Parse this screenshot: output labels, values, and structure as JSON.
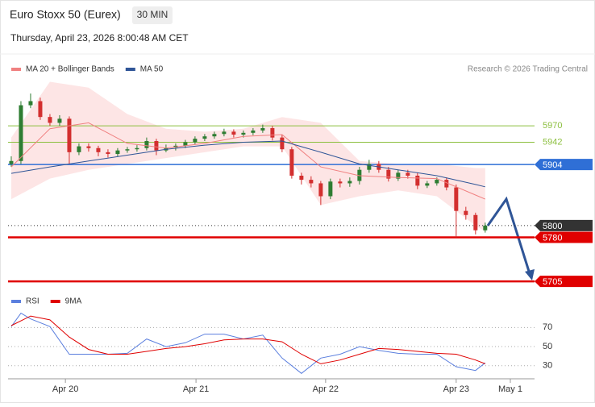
{
  "header": {
    "title": "Euro Stoxx 50 (Eurex)",
    "timeframe": "30 MIN",
    "datetime": "Thursday, April 23, 2026 8:00:48 AM CET",
    "source": "Research © 2026 Trading Central"
  },
  "chart_data": [
    {
      "type": "candlestick",
      "xlim": [
        -0.33,
        54.1
      ],
      "ylim": [
        5690,
        6047
      ],
      "up_color": "#2e7d32",
      "down_color": "#d32f2f",
      "candles": {
        "open": [
          5905,
          5910,
          6005,
          6012,
          5985,
          5975,
          5982,
          5925,
          5935,
          5932,
          5925,
          5922,
          5928,
          5930,
          5932,
          5944,
          5928,
          5933,
          5936,
          5942,
          5948,
          5952,
          5956,
          5960,
          5955,
          5958,
          5962,
          5966,
          5950,
          5930,
          5885,
          5878,
          5872,
          5850,
          5875,
          5872,
          5876,
          5895,
          5905,
          5895,
          5880,
          5890,
          5885,
          5868,
          5872,
          5878,
          5865,
          5825,
          5818,
          5792
        ],
        "high": [
          5918,
          6012,
          6025,
          6018,
          5990,
          5988,
          5986,
          5940,
          5940,
          5936,
          5930,
          5932,
          5934,
          5937,
          5950,
          5948,
          5938,
          5940,
          5946,
          5952,
          5956,
          5960,
          5965,
          5964,
          5962,
          5966,
          5972,
          5970,
          5955,
          5934,
          5890,
          5884,
          5876,
          5880,
          5880,
          5882,
          5900,
          5912,
          5910,
          5900,
          5895,
          5895,
          5890,
          5876,
          5882,
          5882,
          5870,
          5832,
          5822,
          5805
        ],
        "low": [
          5900,
          5905,
          6000,
          5980,
          5970,
          5970,
          5905,
          5920,
          5926,
          5918,
          5916,
          5918,
          5924,
          5926,
          5928,
          5920,
          5925,
          5928,
          5932,
          5938,
          5944,
          5948,
          5952,
          5950,
          5950,
          5954,
          5958,
          5945,
          5925,
          5880,
          5870,
          5865,
          5835,
          5845,
          5865,
          5866,
          5870,
          5890,
          5890,
          5875,
          5876,
          5880,
          5862,
          5864,
          5868,
          5860,
          5780,
          5810,
          5785,
          5788
        ],
        "close": [
          5910,
          6005,
          6012,
          5985,
          5975,
          5982,
          5925,
          5935,
          5932,
          5925,
          5922,
          5928,
          5930,
          5932,
          5944,
          5928,
          5933,
          5936,
          5942,
          5948,
          5952,
          5956,
          5960,
          5955,
          5958,
          5962,
          5966,
          5950,
          5930,
          5885,
          5878,
          5872,
          5850,
          5875,
          5872,
          5876,
          5895,
          5905,
          5895,
          5880,
          5890,
          5885,
          5868,
          5872,
          5878,
          5865,
          5825,
          5818,
          5792,
          5800
        ]
      },
      "series": [
        {
          "name": "MA 20 + Bollinger Bands",
          "color": "#f08080",
          "band_color": "#fde0e0",
          "x": [
            0,
            4,
            8,
            12,
            16,
            20,
            24,
            28,
            32,
            36,
            40,
            44,
            48,
            49
          ],
          "values": [
            5900,
            5965,
            5975,
            5940,
            5932,
            5940,
            5952,
            5955,
            5900,
            5885,
            5882,
            5880,
            5852,
            5845
          ],
          "upper": [
            5950,
            6045,
            6035,
            5990,
            5965,
            5960,
            5965,
            5985,
            5975,
            5910,
            5905,
            5905,
            5898,
            5898
          ],
          "lower": [
            5845,
            5880,
            5895,
            5905,
            5915,
            5925,
            5935,
            5935,
            5835,
            5850,
            5860,
            5850,
            5800,
            5790
          ]
        },
        {
          "name": "MA 50",
          "color": "#2f5597",
          "x": [
            0,
            4,
            8,
            12,
            16,
            20,
            24,
            28,
            32,
            36,
            40,
            44,
            48,
            49
          ],
          "values": [
            5889,
            5900,
            5910,
            5920,
            5930,
            5937,
            5942,
            5944,
            5925,
            5905,
            5895,
            5885,
            5870,
            5866
          ]
        }
      ],
      "levels": [
        {
          "value": 5970,
          "color": "#8cbf3f",
          "width": 1,
          "style": "solid",
          "label_style": "plain"
        },
        {
          "value": 5942,
          "color": "#8cbf3f",
          "width": 1,
          "style": "solid",
          "label_style": "plain"
        },
        {
          "value": 5904,
          "color": "#2f6fd6",
          "width": 1.5,
          "style": "solid",
          "label_style": "box"
        },
        {
          "value": 5800,
          "color": "#333333",
          "width": 1,
          "style": "dotted",
          "label_style": "box"
        },
        {
          "value": 5780,
          "color": "#e00000",
          "width": 2.5,
          "style": "solid",
          "label_style": "box"
        },
        {
          "value": 5705,
          "color": "#e00000",
          "width": 2.5,
          "style": "solid",
          "label_style": "box"
        }
      ],
      "xticks": [
        {
          "value": 5.6,
          "label": "Apr 20"
        },
        {
          "value": 19.1,
          "label": "Apr 21"
        },
        {
          "value": 32.5,
          "label": "Apr 22"
        },
        {
          "value": 46,
          "label": "Apr 23"
        },
        {
          "value": 51.6,
          "label": "May 1"
        }
      ]
    },
    {
      "type": "line",
      "xlim": [
        -0.33,
        54.1
      ],
      "ylim": [
        18,
        88
      ],
      "yticks": [
        70,
        50,
        30
      ],
      "grid": true,
      "series": [
        {
          "name": "RSI",
          "color": "#5b7fde",
          "x": [
            0,
            1,
            2,
            4,
            6,
            8,
            10,
            12,
            14,
            16,
            18,
            20,
            22,
            24,
            26,
            28,
            30,
            32,
            34,
            36,
            38,
            40,
            42,
            44,
            46,
            48,
            49
          ],
          "values": [
            71,
            85,
            79,
            71,
            42,
            42,
            42,
            43,
            58,
            50,
            54,
            63,
            63,
            58,
            62,
            38,
            22,
            38,
            42,
            50,
            46,
            43,
            42,
            42,
            29,
            25,
            33
          ]
        },
        {
          "name": "9MA",
          "color": "#e00000",
          "x": [
            0,
            2,
            4,
            6,
            8,
            10,
            12,
            14,
            16,
            18,
            20,
            22,
            24,
            26,
            28,
            30,
            32,
            34,
            36,
            38,
            40,
            42,
            44,
            46,
            48,
            49
          ],
          "values": [
            72,
            82,
            78,
            60,
            47,
            42,
            42,
            45,
            48,
            50,
            53,
            57,
            58,
            58,
            55,
            42,
            32,
            36,
            42,
            48,
            47,
            45,
            43,
            42,
            36,
            32
          ]
        }
      ]
    }
  ]
}
